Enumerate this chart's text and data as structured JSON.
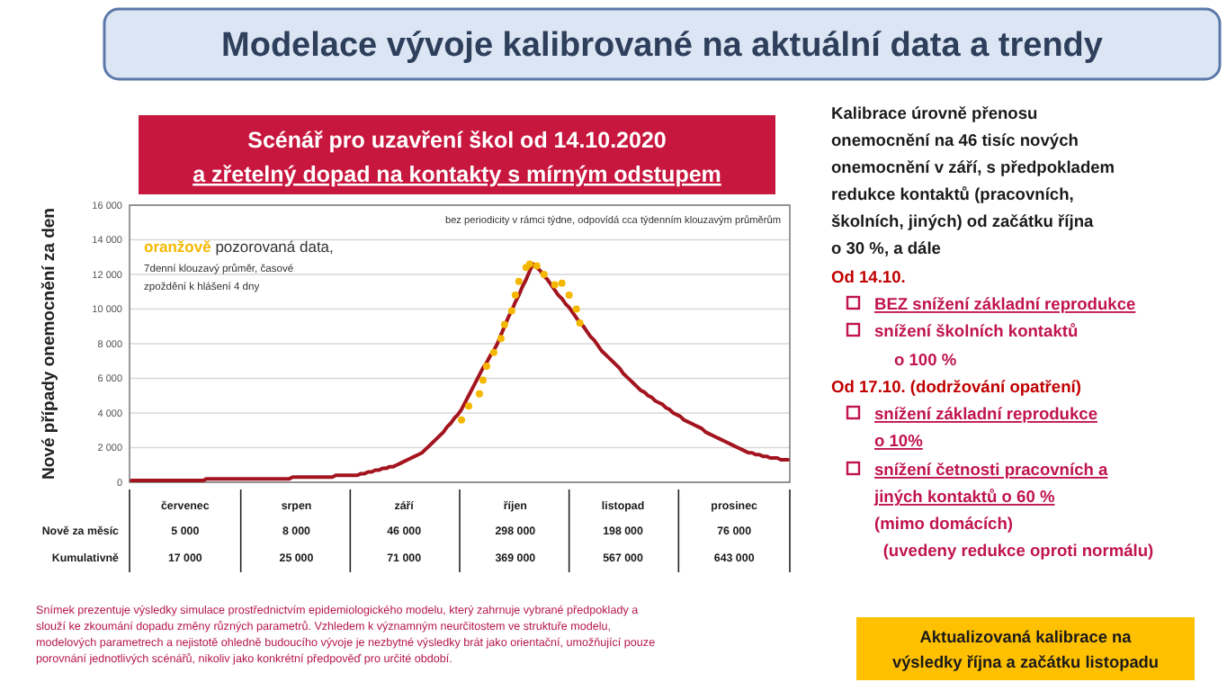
{
  "chart_data": {
    "type": "line",
    "title": "Modelace vývoje kalibrované na aktuální data a trendy",
    "subtitle": "Scénář pro uzavření škol od 14.10.2020 a zřetelný dopad na kontakty s mírným odstupem",
    "ylabel": "Nové případy onemocnění za den",
    "categories": [
      null,
      null,
      null,
      null,
      null,
      null,
      null,
      null,
      null,
      null,
      null,
      null,
      null,
      null,
      null,
      "červenec",
      null,
      null,
      null,
      null,
      null,
      null,
      null,
      null,
      null,
      null,
      null,
      null,
      null,
      null,
      null,
      null,
      null,
      null,
      null,
      null,
      null,
      null,
      null,
      null,
      null,
      null,
      null,
      null,
      null,
      null,
      "srpen",
      null,
      null,
      null,
      null,
      null,
      null,
      null,
      null,
      null,
      null,
      null,
      null,
      null,
      null,
      null,
      null,
      null,
      null,
      null,
      null,
      null,
      null,
      null,
      null,
      null,
      null,
      null,
      null,
      null,
      "září",
      null,
      null,
      null,
      null,
      null,
      null,
      null,
      null,
      null,
      null,
      null,
      null,
      null,
      null,
      null,
      null,
      null,
      null,
      null,
      null,
      null,
      null,
      null,
      null,
      null,
      null,
      null,
      null,
      null,
      null,
      "říjen",
      null,
      null,
      null,
      null,
      null,
      null,
      null,
      null,
      null,
      null,
      null,
      null,
      null,
      null,
      null,
      null,
      null,
      null,
      null,
      null,
      null,
      null,
      null,
      null,
      null,
      null,
      null,
      null,
      null,
      "listopad",
      null,
      null,
      null,
      null,
      null,
      null,
      null,
      null,
      null,
      null,
      null,
      null,
      null,
      null,
      null,
      null,
      null,
      null,
      null,
      null,
      null,
      null,
      null,
      null,
      null,
      null,
      null,
      null,
      null,
      null,
      "prosinec",
      null,
      null,
      null,
      null,
      null,
      null,
      null,
      null,
      null,
      null,
      null,
      null,
      null,
      null,
      null
    ],
    "ylim": [
      0,
      16000
    ],
    "yticks": [
      {
        "value": 0,
        "label": "0"
      },
      {
        "value": 2000,
        "label": "2 000"
      },
      {
        "value": 4000,
        "label": "4 000"
      },
      {
        "value": 6000,
        "label": "6 000"
      },
      {
        "value": 8000,
        "label": "8 000"
      },
      {
        "value": 10000,
        "label": "10 000"
      },
      {
        "value": 12000,
        "label": "12 000"
      },
      {
        "value": 14000,
        "label": "14 000"
      },
      {
        "value": 16000,
        "label": "16 000"
      }
    ],
    "grid": "y",
    "series": [
      {
        "color": "#a3141e",
        "marker": "none",
        "values": [
          100,
          100,
          100,
          100,
          100,
          100,
          100,
          100,
          100,
          100,
          100,
          100,
          100,
          100,
          100,
          100,
          100,
          100,
          100,
          100,
          100,
          200,
          200,
          200,
          200,
          200,
          200,
          200,
          200,
          200,
          200,
          200,
          200,
          200,
          200,
          200,
          200,
          200,
          200,
          200,
          200,
          200,
          200,
          200,
          200,
          300,
          300,
          300,
          300,
          300,
          300,
          300,
          300,
          300,
          300,
          300,
          300,
          400,
          400,
          400,
          400,
          400,
          400,
          400,
          500,
          500,
          600,
          600,
          700,
          700,
          800,
          800,
          900,
          900,
          1000,
          1100,
          1200,
          1300,
          1400,
          1500,
          1600,
          1700,
          1900,
          2100,
          2300,
          2500,
          2700,
          2900,
          3200,
          3400,
          3700,
          3900,
          4200,
          4600,
          5000,
          5400,
          5800,
          6200,
          6600,
          6900,
          7300,
          7600,
          8000,
          8500,
          9000,
          9500,
          9900,
          10400,
          10800,
          11300,
          11700,
          12200,
          12600,
          12400,
          12200,
          11900,
          11700,
          11400,
          11100,
          10800,
          10600,
          10300,
          10100,
          9800,
          9500,
          9200,
          9000,
          8700,
          8400,
          8200,
          7900,
          7600,
          7400,
          7200,
          7000,
          6800,
          6600,
          6300,
          6100,
          5900,
          5700,
          5500,
          5300,
          5200,
          5000,
          4900,
          4700,
          4600,
          4500,
          4300,
          4200,
          4000,
          3900,
          3800,
          3600,
          3500,
          3400,
          3300,
          3200,
          3100,
          2900,
          2800,
          2700,
          2600,
          2500,
          2400,
          2300,
          2200,
          2100,
          2000,
          1900,
          1800,
          1700,
          1700,
          1600,
          1600,
          1500,
          1500,
          1400,
          1400,
          1400,
          1300,
          1300,
          1300
        ]
      },
      {
        "type": "scatter",
        "color": "#f5b800",
        "marker": "circle",
        "values": [
          null,
          null,
          null,
          null,
          null,
          null,
          null,
          null,
          null,
          null,
          null,
          null,
          null,
          null,
          null,
          null,
          null,
          null,
          null,
          null,
          null,
          null,
          null,
          null,
          null,
          null,
          null,
          null,
          null,
          null,
          null,
          null,
          null,
          null,
          null,
          null,
          null,
          null,
          null,
          null,
          null,
          null,
          null,
          null,
          null,
          null,
          null,
          null,
          null,
          null,
          null,
          null,
          null,
          null,
          null,
          null,
          null,
          null,
          null,
          null,
          null,
          null,
          null,
          null,
          null,
          null,
          null,
          null,
          null,
          null,
          null,
          null,
          null,
          null,
          null,
          null,
          null,
          null,
          null,
          null,
          null,
          null,
          null,
          null,
          null,
          null,
          null,
          null,
          null,
          null,
          null,
          null,
          3600,
          null,
          4400,
          null,
          null,
          5100,
          5900,
          6700,
          null,
          7500,
          null,
          8300,
          9100,
          null,
          9900,
          10800,
          11600,
          null,
          12400,
          12600,
          null,
          12500,
          null,
          12000,
          null,
          null,
          11400,
          null,
          11500,
          null,
          10800,
          null,
          10000,
          9200,
          null,
          null,
          null,
          null,
          null,
          null,
          null,
          null,
          null,
          null,
          null,
          null,
          null,
          null,
          null,
          null,
          null,
          null,
          null,
          null,
          null,
          null,
          null,
          null,
          null,
          null,
          null,
          null,
          null,
          null,
          null,
          null,
          null,
          null,
          null,
          null,
          null,
          null,
          null,
          null,
          null,
          null,
          null,
          null,
          null,
          null,
          null,
          null,
          null,
          null,
          null,
          null,
          null,
          null,
          null,
          null,
          null,
          null
        ]
      }
    ],
    "annotations": [
      "bez periodicity v rámci týdne, odpovídá cca týdenním klouzavým průměrům",
      "oranžově",
      "pozorovaná data,",
      "7denní klouzavý průměr, časové",
      "zpoždění k hlášení 4 dny",
      "Nově za měsíc",
      "Kumulativně",
      "5 000",
      "8 000",
      "46 000",
      "298 000",
      "198 000",
      "76 000",
      "17 000",
      "25 000",
      "71 000",
      "369 000",
      "567 000",
      "643 000",
      "Snímek prezentuje výsledky simulace prostřednictvím epidemiologického modelu, který zahrnuje vybrané předpoklady a",
      "slouží ke zkoumání dopadu změny různých parametrů. Vzhledem k významným neurčitostem ve struktuře modelu,",
      "modelových parametrech a nejistotě ohledně budoucího vývoje je nezbytné výsledky brát jako orientační, umožňující pouze",
      "porovnání jednotlivých scénářů, nikoliv jako konkrétní předpověď pro určité období.",
      "Kalibrace úrovně přenosu",
      "onemocnění na 46 tisíc nových",
      "onemocnění v září, s předpokladem",
      "redukce kontaktů (pracovních,",
      "školních, jiných) od začátku října",
      "o 30 %, a dále",
      "Od 14.10.",
      "BEZ snížení základní reprodukce",
      "snížení školních kontaktů",
      "o 100 %",
      "Od 17.10. (dodržování opatření)",
      "snížení základní reprodukce",
      "o 10%",
      "snížení četnosti pracovních a",
      "jiných kontaktů o 60 %",
      "(mimo domácích)",
      "(uvedeny redukce oproti normálu)",
      "Aktualizovaná kalibrace na",
      "výsledky října a začátku listopadu"
    ]
  }
}
